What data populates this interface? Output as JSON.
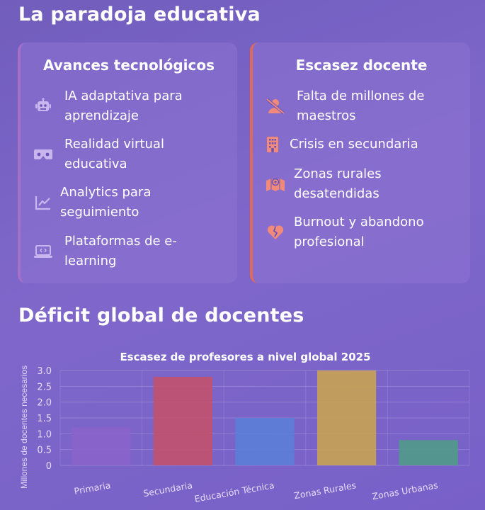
{
  "sections": {
    "paradox_title": "La paradoja educativa",
    "deficit_title": "Déficit global de docentes"
  },
  "colors": {
    "bg": "#6147bd",
    "left_accent": "#a670c8",
    "right_accent": "#e06a5a",
    "left_icon": "#c9b6ee",
    "right_icon": "#f08a7a"
  },
  "left_card": {
    "title": "Avances tecnológicos",
    "items": [
      {
        "icon": "robot-icon",
        "text_lines": [
          "IA adaptativa para",
          "aprendizaje"
        ]
      },
      {
        "icon": "vr-headset-icon",
        "text_lines": [
          "Realidad virtual",
          "educativa"
        ]
      },
      {
        "icon": "line-chart-icon",
        "text_lines": [
          "Analytics para",
          "seguimiento"
        ]
      },
      {
        "icon": "laptop-code-icon",
        "text_lines": [
          "Plataformas de e-",
          "learning"
        ]
      }
    ]
  },
  "right_card": {
    "title": "Escasez docente",
    "items": [
      {
        "icon": "user-slash-icon",
        "text_lines": [
          "Falta de millones de",
          "maestros"
        ]
      },
      {
        "icon": "building-icon",
        "text_lines": [
          "Crisis en secundaria"
        ]
      },
      {
        "icon": "map-icon",
        "text_lines": [
          "Zonas rurales",
          "desatendidas"
        ]
      },
      {
        "icon": "broken-heart-icon",
        "text_lines": [
          "Burnout y abandono",
          "profesional"
        ]
      }
    ]
  },
  "chart_data": {
    "type": "bar",
    "title": "Escasez de profesores a nivel global 2025",
    "xlabel": "",
    "ylabel": "Millones de docentes necesarios",
    "categories": [
      "Primaria",
      "Secundaria",
      "Educación Técnica",
      "Zonas Rurales",
      "Zonas Urbanas"
    ],
    "values": [
      1.2,
      2.8,
      1.5,
      3.0,
      0.8
    ],
    "ylim": [
      0,
      3.0
    ],
    "yticks": [
      "0",
      "0.5",
      "1.0",
      "1.5",
      "2.0",
      "2.5",
      "3.0"
    ],
    "bar_colors": [
      "#8a63c8",
      "#c4516a",
      "#5a7fd6",
      "#c9a54e",
      "#4f9d86"
    ],
    "grid": true,
    "legend": "none"
  }
}
